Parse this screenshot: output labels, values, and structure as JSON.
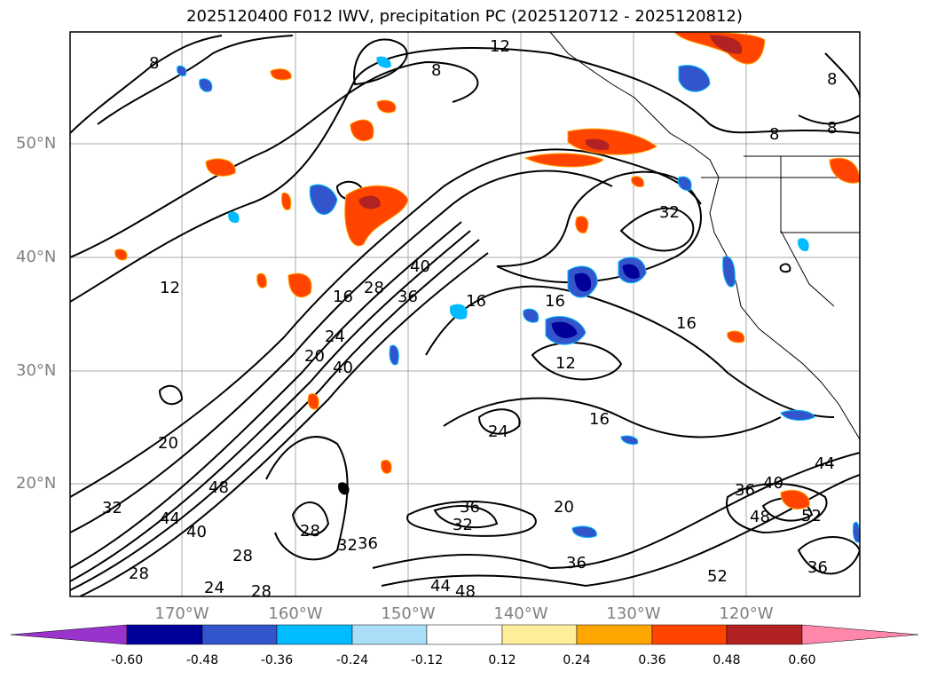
{
  "title": "2025120400 F012 IWV, precipitation PC (2025120712 - 2025120812)",
  "map": {
    "lat_labels": [
      "50°N",
      "40°N",
      "30°N",
      "20°N"
    ],
    "lon_labels": [
      "170°W",
      "160°W",
      "150°W",
      "140°W",
      "130°W",
      "120°W"
    ],
    "contour_labels": [
      {
        "id": "c1",
        "text": "8"
      },
      {
        "id": "c2",
        "text": "12"
      },
      {
        "id": "c3",
        "text": "8"
      },
      {
        "id": "c4",
        "text": "8"
      },
      {
        "id": "c5",
        "text": "8"
      },
      {
        "id": "c6",
        "text": "8"
      },
      {
        "id": "c7",
        "text": "12"
      },
      {
        "id": "c8",
        "text": "16"
      },
      {
        "id": "c9",
        "text": "28"
      },
      {
        "id": "c10",
        "text": "40"
      },
      {
        "id": "c11",
        "text": "36"
      },
      {
        "id": "c12",
        "text": "16"
      },
      {
        "id": "c13",
        "text": "16"
      },
      {
        "id": "c14",
        "text": "16"
      },
      {
        "id": "c15",
        "text": "12"
      },
      {
        "id": "c16",
        "text": "20"
      },
      {
        "id": "c17",
        "text": "24"
      },
      {
        "id": "c18",
        "text": "40"
      },
      {
        "id": "c19",
        "text": "32"
      },
      {
        "id": "c20",
        "text": "20"
      },
      {
        "id": "c21",
        "text": "16"
      },
      {
        "id": "c22",
        "text": "24"
      },
      {
        "id": "c23",
        "text": "48"
      },
      {
        "id": "c24",
        "text": "32"
      },
      {
        "id": "c25",
        "text": "44"
      },
      {
        "id": "c26",
        "text": "40"
      },
      {
        "id": "c27",
        "text": "28"
      },
      {
        "id": "c28",
        "text": "28"
      },
      {
        "id": "c29",
        "text": "24"
      },
      {
        "id": "c30",
        "text": "28"
      },
      {
        "id": "c31",
        "text": "36"
      },
      {
        "id": "c32",
        "text": "32"
      },
      {
        "id": "c33",
        "text": "36"
      },
      {
        "id": "c34",
        "text": "20"
      },
      {
        "id": "c35",
        "text": "28"
      },
      {
        "id": "c36",
        "text": "44"
      },
      {
        "id": "c37",
        "text": "48"
      },
      {
        "id": "c38",
        "text": "52"
      },
      {
        "id": "c39",
        "text": "36"
      },
      {
        "id": "c40",
        "text": "40"
      },
      {
        "id": "c41",
        "text": "48"
      },
      {
        "id": "c42",
        "text": "52"
      },
      {
        "id": "c43",
        "text": "44"
      },
      {
        "id": "c44",
        "text": "36"
      },
      {
        "id": "c45",
        "text": "32"
      },
      {
        "id": "c46",
        "text": "36"
      }
    ]
  },
  "colorbar": {
    "labels": [
      "-0.60",
      "-0.48",
      "-0.36",
      "-0.24",
      "-0.12",
      "0.12",
      "0.24",
      "0.36",
      "0.48",
      "0.60"
    ],
    "colors": [
      "#9933cc",
      "#000099",
      "#3355cc",
      "#00bbff",
      "#aaddf8",
      "#ffffff",
      "#ffee99",
      "#ffa500",
      "#ff4400",
      "#b22222",
      "#ff88aa"
    ]
  }
}
